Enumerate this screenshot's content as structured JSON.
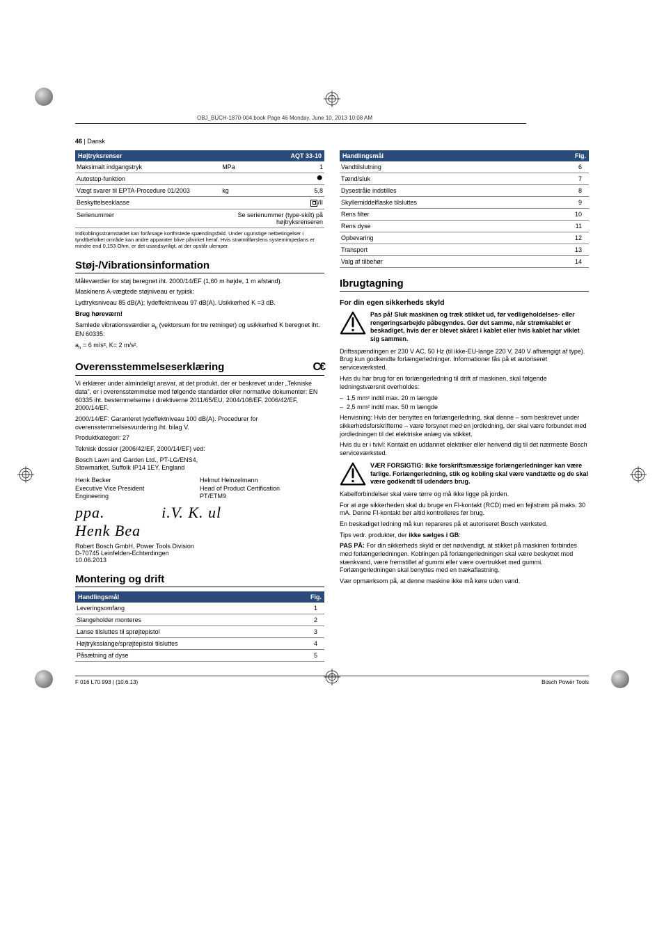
{
  "meta": {
    "book_header": "OBJ_BUCH-1870-004.book  Page 46  Monday, June 10, 2013  10:08 AM",
    "page_num": "46",
    "lang": "Dansk",
    "footer_left": "F 016 L70 993 | (10.6.13)",
    "footer_right": "Bosch Power Tools"
  },
  "colors": {
    "header_bg": "#2a4a7a",
    "header_fg": "#ffffff",
    "rule": "#888888"
  },
  "spec_table": {
    "header_left": "Højtryksrenser",
    "header_right": "AQT 33-10",
    "rows": [
      {
        "label": "Maksimalt indgangstryk",
        "unit": "MPa",
        "val": "1"
      },
      {
        "label": "Autostop-funktion",
        "unit": "",
        "val": "●"
      },
      {
        "label": "Vægt svarer til EPTA-Procedure 01/2003",
        "unit": "kg",
        "val": "5,8"
      },
      {
        "label": "Beskyttelsesklasse",
        "unit": "",
        "val": "CLASS2"
      },
      {
        "label": "Serienummer",
        "unit": "",
        "val": "Se serienummer (type-skilt) på højtryksrenseren"
      }
    ],
    "note": "Indkoblingsstrømstødet kan forårsage kortfristede spændingsfald. Under ugunstige netbetingelser i tyndtbefolket område kan andre apparater blive påvirket heraf. Hvis strømtilførslens systemimpedans er mindre end 0,153 Ohm, er det usandsynligt, at der opstår ulemper."
  },
  "sections": {
    "noise": {
      "title": "Støj-/Vibrationsinformation",
      "p1": "Måleværdier for støj beregnet iht. 2000/14/EF (1,60 m højde, 1 m afstand).",
      "p2": "Maskinens A-vægtede støjniveau er typisk:",
      "p3": "Lydtryksniveau 85 dB(A); lydeffektniveau 97 dB(A). Usikkerhed K =3 dB.",
      "p4_bold": "Brug høreværn!",
      "p5a": "Samlede vibrationsværdier a",
      "p5b": " (vektorsum for tre retninger) og usikkerhed K beregnet iht. EN 60335:",
      "p6": "a",
      "p6b": " = 6 m/s², K= 2 m/s²."
    },
    "conformity": {
      "title": "Overensstemmelseserklæring",
      "p1": "Vi erklærer under almindeligt ansvar, at det produkt, der er beskrevet under „Tekniske data\", er i overensstemmelse med følgende standarder eller normative dokumenter: EN 60335 iht. bestemmelserne i direktiverne 2011/65/EU, 2004/108/EF, 2006/42/EF, 2000/14/EF.",
      "p2": "2000/14/EF: Garanteret lydeffektniveau 100 dB(A). Procedurer for overensstemmelsesvurdering iht. bilag V.",
      "p3": "Produktkategori: 27",
      "p4": "Teknisk dossier (2006/42/EF, 2000/14/EF) ved:",
      "p5": "Bosch Lawn and Garden Ltd., PT-LG/ENS4,",
      "p6": "Stowmarket, Suffolk IP14 1EY, England",
      "sig1_name": "Henk Becker",
      "sig1_title": "Executive Vice President",
      "sig1_dept": "Engineering",
      "sig2_name": "Helmut Heinzelmann",
      "sig2_title": "Head of Product Certification",
      "sig2_dept": "PT/ETM9",
      "addr1": "Robert Bosch GmbH, Power Tools Division",
      "addr2": "D-70745 Leinfelden-Echterdingen",
      "addr3": "10.06.2013"
    },
    "assembly": {
      "title": "Montering og drift",
      "header_left": "Handlingsmål",
      "header_right": "Fig.",
      "rows_a": [
        {
          "label": "Leveringsomfang",
          "fig": "1"
        },
        {
          "label": "Slangeholder monteres",
          "fig": "2"
        },
        {
          "label": "Lanse tilsluttes til sprøjtepistol",
          "fig": "3"
        },
        {
          "label": "Højtryksslange/sprøjtepistol tilsluttes",
          "fig": "4"
        },
        {
          "label": "Påsætning af dyse",
          "fig": "5"
        }
      ],
      "rows_b": [
        {
          "label": "Vandtilslutning",
          "fig": "6"
        },
        {
          "label": "Tænd/sluk",
          "fig": "7"
        },
        {
          "label": "Dysestråle indstilles",
          "fig": "8"
        },
        {
          "label": "Skyllemiddelflaske tilsluttes",
          "fig": "9"
        },
        {
          "label": "Rens filter",
          "fig": "10"
        },
        {
          "label": "Rens dyse",
          "fig": "11"
        },
        {
          "label": "Opbevaring",
          "fig": "12"
        },
        {
          "label": "Transport",
          "fig": "13"
        },
        {
          "label": "Valg af tilbehør",
          "fig": "14"
        }
      ]
    },
    "commissioning": {
      "title": "Ibrugtagning",
      "sub1": "For din egen sikkerheds skyld",
      "warn1": "Pas på! Sluk maskinen og træk stikket ud, før vedligeholdelses- eller rengøringsarbejde påbegyndes. Gør det samme, når strømkablet er beskadiget, hvis der er blevet skåret i kablet eller hvis kablet har viklet sig sammen.",
      "p1": "Driftsspændingen er 230 V AC, 50 Hz (til ikke-EU-lange 220 V, 240 V afhængigt af type). Brug kun godkendte forlængerledninger. Informationer fås på et autoriseret serviceværksted.",
      "p2": "Hvis du har brug for en forlængerledning til drift af maskinen, skal følgende ledningstværsnit overholdes:",
      "li1": "1,5 mm² indtil max. 20 m længde",
      "li2": "2,5 mm² indtil max. 50 m længde",
      "p3": "Henvisning: Hvis der benyttes en forlængerledning, skal denne – som beskrevet under sikkerhedsforskrifterne – være forsynet med en jordledning, der skal være forbundet med jordledningen til det elektriske anlæg via stikket.",
      "p4": "Hvis du er i tvivl: Kontakt en uddannet elektriker eller henvend dig til det nærmeste Bosch serviceværksted.",
      "warn2": "VÆR FORSIGTIG: Ikke forskriftsmæssige forlængerledninger kan være farlige. Forlængerledning, stik og kobling skal være vandtætte og de skal være godkendt til udendørs brug.",
      "p5": "Kabelforbindelser skal være tørre og må ikke ligge på jorden.",
      "p6": "For at øge sikkerheden skal du bruge en FI-kontakt (RCD) med en fejlstrøm på maks. 30 mA. Denne FI-kontakt bør altid kontrolleres før brug.",
      "p7": "En beskadiget ledning må kun repareres på et autoriseret Bosch værksted.",
      "p8a": "Tips vedr. produkter, der ",
      "p8b": "ikke sælges i GB",
      "p8c": ":",
      "p9a": "PAS PÅ:",
      "p9b": " For din sikkerheds skyld er det nødvendigt, at stikket på maskinen forbindes med forlængerledningen. Koblingen på forlængerledningen skal være beskyttet mod stænkvand, være fremstillet af gummi eller være overtrukket med gummi. Forlængerledningen skal benyttes med en trækaflastning.",
      "p10": "Vær opmærksom på, at denne maskine ikke må køre uden vand."
    }
  }
}
